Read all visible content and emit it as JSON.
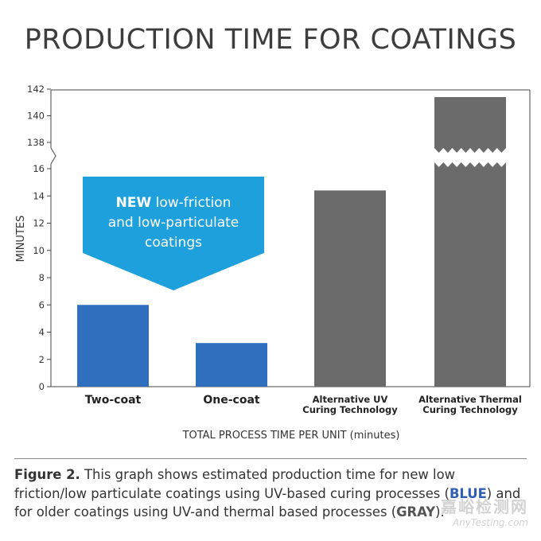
{
  "chart_data": {
    "type": "bar",
    "title": "PRODUCTION TIME FOR COATINGS",
    "xlabel": "TOTAL PROCESS TIME PER UNIT (minutes)",
    "ylabel": "MINUTES",
    "categories": [
      "Two-coat",
      "One-coat",
      "Alternative UV Curing Technology",
      "Alternative Thermal Curing Technology"
    ],
    "category_lines": [
      [
        "Two-coat"
      ],
      [
        "One-coat"
      ],
      [
        "Alternative UV",
        "Curing Technology"
      ],
      [
        "Alternative Thermal",
        "Curing Technology"
      ]
    ],
    "values": [
      6,
      3.2,
      14.4,
      141.4
    ],
    "colors": [
      "#2f6fbe",
      "#2f6fbe",
      "#6b6b6b",
      "#6b6b6b"
    ],
    "y_ticks_lower": [
      0,
      2,
      4,
      6,
      8,
      10,
      12,
      14,
      16
    ],
    "y_ticks_upper": [
      138,
      140,
      142
    ],
    "axis_break": {
      "from": 16,
      "to": 138
    },
    "ylim_lower": [
      0,
      16
    ],
    "ylim_upper": [
      138,
      142
    ],
    "callout": {
      "bold": "NEW",
      "rest_line1": " low-friction",
      "line2": "and low-particulate",
      "line3": "coatings"
    },
    "grid": false
  },
  "caption": {
    "label": "Figure 2.",
    "text1": " This graph shows estimated production time for new low friction/low particulate coatings using UV-based curing processes (",
    "blue": "BLUE",
    "text2": ") and for older coatings using UV-and thermal based processes (",
    "gray": "GRAY",
    "text3": ")."
  },
  "watermark": {
    "line1": "嘉峪检测网",
    "line2": "AnyTesting.com"
  }
}
